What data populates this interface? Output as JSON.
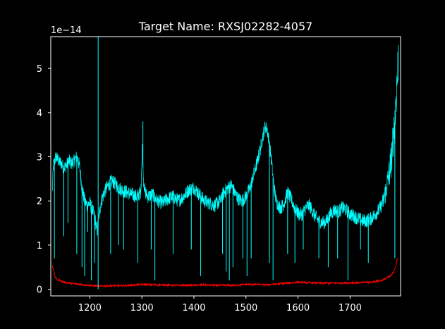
{
  "chart_data": {
    "type": "line",
    "title": "Target Name: RXSJ02282-4057",
    "xlabel": "",
    "ylabel": "",
    "y_offset_label": "1e−14",
    "xlim": [
      1125,
      1797
    ],
    "ylim": [
      -0.15,
      5.72
    ],
    "y_scale_factor": 1e-14,
    "x_ticks": [
      1200,
      1300,
      1400,
      1500,
      1600,
      1700
    ],
    "x_tick_labels": [
      "1200",
      "1300",
      "1400",
      "1500",
      "1600",
      "1700"
    ],
    "y_ticks": [
      0,
      1,
      2,
      3,
      4,
      5
    ],
    "y_tick_labels": [
      "0",
      "1",
      "2",
      "3",
      "4",
      "5"
    ],
    "grid": false,
    "background": "#000000",
    "axes_color": "#ffffff",
    "series": [
      {
        "color": "#00ffff",
        "x": [
          1128,
          1130,
          1135,
          1140,
          1145,
          1150,
          1155,
          1160,
          1165,
          1170,
          1175,
          1180,
          1185,
          1190,
          1195,
          1200,
          1205,
          1210,
          1214,
          1216,
          1218,
          1222,
          1228,
          1235,
          1242,
          1248,
          1255,
          1262,
          1270,
          1280,
          1290,
          1298,
          1301,
          1303,
          1306,
          1312,
          1320,
          1330,
          1340,
          1350,
          1360,
          1370,
          1380,
          1390,
          1400,
          1410,
          1420,
          1430,
          1440,
          1450,
          1458,
          1465,
          1472,
          1478,
          1485,
          1492,
          1500,
          1508,
          1515,
          1522,
          1528,
          1533,
          1537,
          1541,
          1545,
          1549,
          1553,
          1558,
          1565,
          1572,
          1580,
          1588,
          1595,
          1602,
          1608,
          1615,
          1622,
          1630,
          1640,
          1648,
          1655,
          1662,
          1670,
          1678,
          1685,
          1692,
          1700,
          1708,
          1716,
          1724,
          1732,
          1740,
          1748,
          1756,
          1764,
          1770,
          1775,
          1780,
          1784,
          1787,
          1789,
          1791,
          1792,
          1793
        ],
        "values": [
          2.2,
          2.8,
          3.0,
          2.9,
          2.85,
          2.75,
          2.8,
          2.9,
          2.85,
          2.9,
          3.0,
          2.8,
          2.3,
          2.0,
          1.9,
          1.95,
          1.8,
          1.6,
          1.3,
          1.5,
          1.7,
          2.0,
          2.2,
          2.35,
          2.45,
          2.4,
          2.3,
          2.25,
          2.2,
          2.15,
          2.1,
          2.2,
          3.3,
          2.5,
          2.2,
          2.1,
          2.15,
          2.0,
          1.95,
          2.05,
          2.1,
          2.0,
          2.1,
          2.25,
          2.3,
          2.15,
          2.0,
          1.95,
          1.9,
          2.0,
          2.2,
          2.3,
          2.35,
          2.2,
          2.05,
          2.0,
          2.1,
          2.3,
          2.6,
          2.9,
          3.2,
          3.5,
          3.7,
          3.6,
          3.3,
          2.9,
          2.4,
          2.0,
          1.85,
          1.9,
          2.2,
          2.0,
          1.8,
          1.7,
          1.7,
          1.85,
          1.9,
          1.7,
          1.55,
          1.5,
          1.55,
          1.7,
          1.8,
          1.75,
          1.85,
          1.8,
          1.7,
          1.65,
          1.6,
          1.55,
          1.55,
          1.6,
          1.7,
          1.8,
          2.0,
          2.3,
          2.6,
          3.0,
          3.5,
          4.0,
          4.5,
          4.8,
          5.1,
          5.5
        ]
      },
      {
        "color": "#ff0000",
        "x": [
          1128,
          1130,
          1133,
          1137,
          1142,
          1150,
          1160,
          1175,
          1190,
          1205,
          1220,
          1240,
          1260,
          1280,
          1300,
          1320,
          1340,
          1360,
          1380,
          1400,
          1420,
          1440,
          1460,
          1480,
          1500,
          1520,
          1540,
          1560,
          1580,
          1600,
          1620,
          1640,
          1660,
          1680,
          1700,
          1720,
          1740,
          1760,
          1770,
          1778,
          1783,
          1787,
          1790,
          1793
        ],
        "values": [
          0.55,
          0.45,
          0.28,
          0.22,
          0.2,
          0.16,
          0.14,
          0.12,
          0.1,
          0.08,
          0.07,
          0.08,
          0.08,
          0.09,
          0.11,
          0.1,
          0.1,
          0.09,
          0.09,
          0.09,
          0.1,
          0.09,
          0.09,
          0.09,
          0.11,
          0.11,
          0.1,
          0.12,
          0.14,
          0.16,
          0.15,
          0.14,
          0.14,
          0.14,
          0.15,
          0.15,
          0.16,
          0.2,
          0.25,
          0.3,
          0.38,
          0.5,
          0.65,
          0.72
        ]
      }
    ],
    "spikes": [
      {
        "x": 1132,
        "value": 0.7,
        "direction": "down"
      },
      {
        "x": 1150,
        "value": 1.2,
        "direction": "down"
      },
      {
        "x": 1158,
        "value": 1.5,
        "direction": "down"
      },
      {
        "x": 1175,
        "value": 0.8,
        "direction": "down"
      },
      {
        "x": 1185,
        "value": 0.5,
        "direction": "down"
      },
      {
        "x": 1190,
        "value": 0.3,
        "direction": "down"
      },
      {
        "x": 1196,
        "value": 1.3,
        "direction": "down"
      },
      {
        "x": 1203,
        "value": 0.2,
        "direction": "down"
      },
      {
        "x": 1209,
        "value": 0.6,
        "direction": "down"
      },
      {
        "x": 1216,
        "value": 5.72,
        "direction": "up"
      },
      {
        "x": 1216,
        "value": 0.0,
        "direction": "down"
      },
      {
        "x": 1240,
        "value": 0.8,
        "direction": "down"
      },
      {
        "x": 1255,
        "value": 1.0,
        "direction": "down"
      },
      {
        "x": 1265,
        "value": 0.9,
        "direction": "down"
      },
      {
        "x": 1292,
        "value": 0.6,
        "direction": "down"
      },
      {
        "x": 1302,
        "value": 3.8,
        "direction": "up"
      },
      {
        "x": 1318,
        "value": 0.9,
        "direction": "down"
      },
      {
        "x": 1325,
        "value": 0.2,
        "direction": "down"
      },
      {
        "x": 1360,
        "value": 0.8,
        "direction": "down"
      },
      {
        "x": 1395,
        "value": 0.9,
        "direction": "down"
      },
      {
        "x": 1413,
        "value": 0.3,
        "direction": "down"
      },
      {
        "x": 1455,
        "value": 0.8,
        "direction": "down"
      },
      {
        "x": 1462,
        "value": 0.4,
        "direction": "down"
      },
      {
        "x": 1468,
        "value": 0.2,
        "direction": "down"
      },
      {
        "x": 1475,
        "value": 0.5,
        "direction": "down"
      },
      {
        "x": 1494,
        "value": 0.7,
        "direction": "down"
      },
      {
        "x": 1502,
        "value": 0.3,
        "direction": "down"
      },
      {
        "x": 1510,
        "value": 0.7,
        "direction": "down"
      },
      {
        "x": 1545,
        "value": 0.6,
        "direction": "down"
      },
      {
        "x": 1552,
        "value": 0.2,
        "direction": "down"
      },
      {
        "x": 1580,
        "value": 0.8,
        "direction": "down"
      },
      {
        "x": 1594,
        "value": 0.6,
        "direction": "down"
      },
      {
        "x": 1610,
        "value": 0.9,
        "direction": "down"
      },
      {
        "x": 1640,
        "value": 0.7,
        "direction": "down"
      },
      {
        "x": 1658,
        "value": 0.5,
        "direction": "down"
      },
      {
        "x": 1676,
        "value": 0.7,
        "direction": "down"
      },
      {
        "x": 1696,
        "value": 0.2,
        "direction": "down"
      },
      {
        "x": 1720,
        "value": 0.9,
        "direction": "down"
      },
      {
        "x": 1735,
        "value": 0.6,
        "direction": "down"
      },
      {
        "x": 1786,
        "value": 0.7,
        "direction": "down"
      }
    ]
  }
}
